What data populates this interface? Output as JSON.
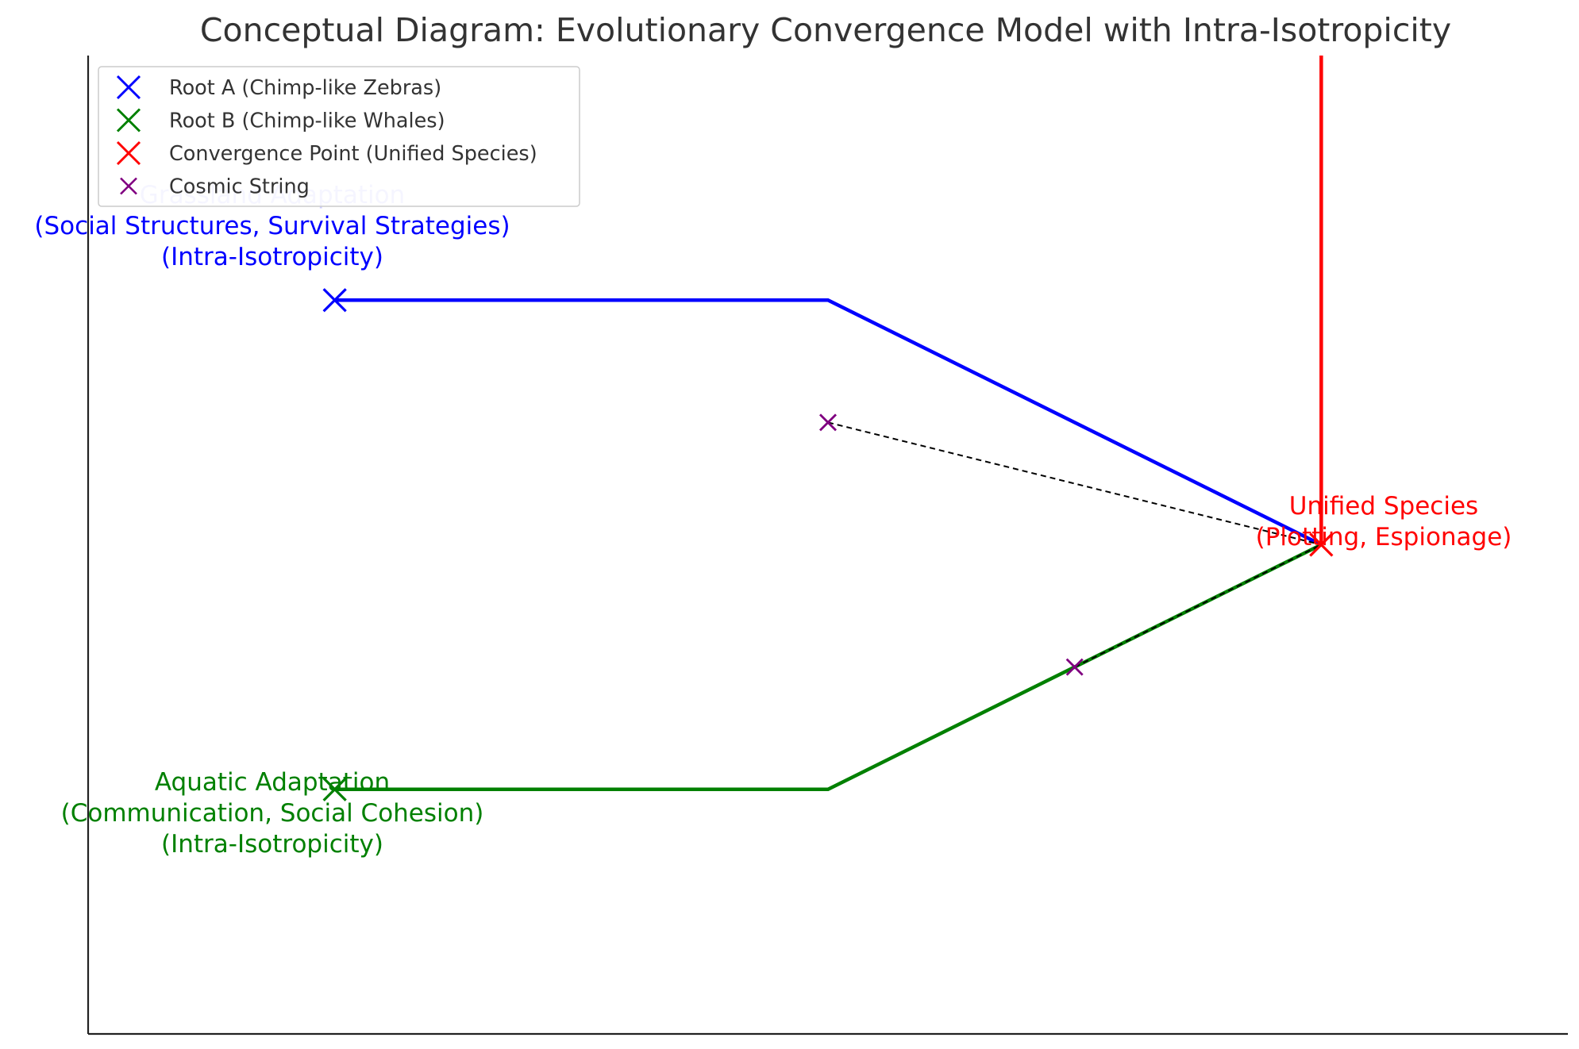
{
  "title": "Conceptual Diagram: Evolutionary Convergence Model with Intra-Isotropicity",
  "colors": {
    "root_a": "#0000ff",
    "root_b": "#008000",
    "convergence": "#ff0000",
    "cosmic_string": "#800080",
    "cosmic_link": "#000000",
    "text": "#333333"
  },
  "legend": {
    "placement": "upper-left",
    "entries": [
      {
        "label": "Root A (Chimp-like Zebras)",
        "color": "#0000ff",
        "marker": "x-large"
      },
      {
        "label": "Root B (Chimp-like Whales)",
        "color": "#008000",
        "marker": "x-large"
      },
      {
        "label": "Convergence Point (Unified Species)",
        "color": "#ff0000",
        "marker": "x-large"
      },
      {
        "label": "Cosmic String",
        "color": "#800080",
        "marker": "x-small"
      }
    ]
  },
  "annotations": {
    "root_a": [
      "Grassland Adaptation",
      "(Social Structures, Survival Strategies)",
      "(Intra-Isotropicity)"
    ],
    "root_b": [
      "Aquatic Adaptation",
      "(Communication, Social Cohesion)",
      "(Intra-Isotropicity)"
    ],
    "convergence": [
      "Unified Species",
      "(Plotting, Espionage)"
    ]
  },
  "chart_data": {
    "type": "line",
    "xlim": [
      0,
      12
    ],
    "ylim": [
      0,
      8
    ],
    "axes": {
      "x_ticks": false,
      "y_ticks": false,
      "spines": [
        "left",
        "bottom"
      ]
    },
    "series": [
      {
        "key": "root_a_path",
        "color": "#0000ff",
        "x": [
          2,
          6,
          10
        ],
        "y": [
          6,
          6,
          4
        ]
      },
      {
        "key": "root_b_path",
        "color": "#008000",
        "x": [
          2,
          6,
          10
        ],
        "y": [
          2,
          2,
          4
        ]
      },
      {
        "key": "convergence_line",
        "color": "#ff0000",
        "x": [
          10,
          10
        ],
        "y": [
          4,
          8
        ]
      },
      {
        "key": "cosmic_link_1",
        "color": "#000000",
        "dashed": true,
        "x": [
          6,
          10
        ],
        "y": [
          5,
          4
        ]
      },
      {
        "key": "cosmic_link_2",
        "color": "#000000",
        "dashed": true,
        "x": [
          8,
          10
        ],
        "y": [
          3,
          4
        ]
      }
    ],
    "points": [
      {
        "key": "root_a",
        "x": 2,
        "y": 6,
        "color": "#0000ff",
        "size": "large"
      },
      {
        "key": "root_b",
        "x": 2,
        "y": 2,
        "color": "#008000",
        "size": "large"
      },
      {
        "key": "convergence",
        "x": 10,
        "y": 4,
        "color": "#ff0000",
        "size": "large"
      },
      {
        "key": "cosmic_string_1",
        "x": 6,
        "y": 5,
        "color": "#800080",
        "size": "small"
      },
      {
        "key": "cosmic_string_2",
        "x": 8,
        "y": 3,
        "color": "#800080",
        "size": "small"
      }
    ]
  }
}
